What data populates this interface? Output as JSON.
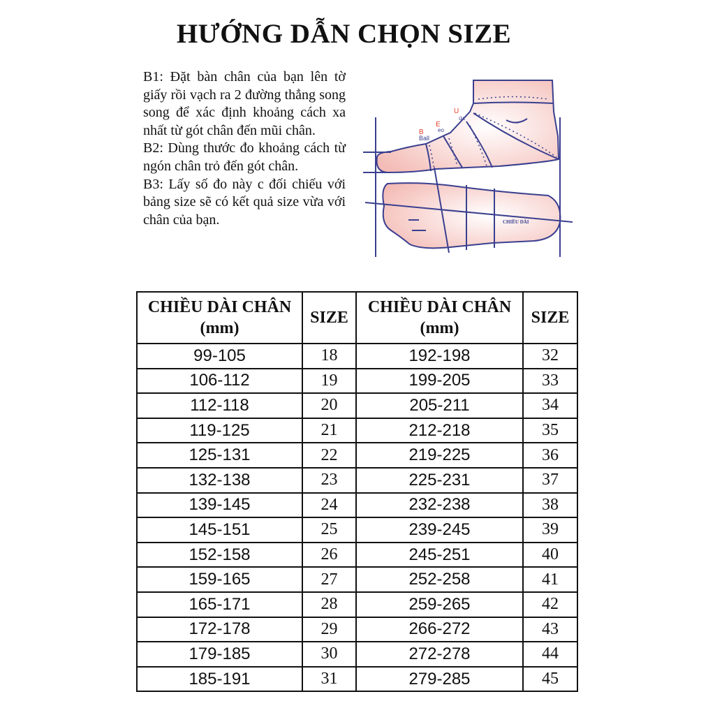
{
  "title": "HƯỚNG DẪN CHỌN SIZE",
  "instructions": [
    "B1: Đặt bàn chân của bạn lên tờ giấy rồi vạch ra 2 đường thẳng song song để xác định khoảng cách xa nhất từ gót chân đến mũi chân.",
    "B2: Dùng thước đo khoảng cách từ ngón chân trỏ đến gót chân.",
    "B3: Lấy số đo này c đối chiếu với bảng size sẽ có kết quả size vừa với chân của bạn."
  ],
  "diagram": {
    "labels": {
      "u": "U",
      "u_sub": "ức",
      "e": "E",
      "e_sub": "eo",
      "b": "B",
      "b_sub": "Ball",
      "length": "CHIỀU DÀI"
    },
    "colors": {
      "line": "#3a3f8f",
      "fill": "#f6c9c4",
      "accent": "#e0402a"
    }
  },
  "table": {
    "headers": [
      "CHIỀU DÀI CHÂN (mm)",
      "SIZE",
      "CHIỀU DÀI CHÂN (mm)",
      "SIZE"
    ],
    "rows": [
      [
        "99-105",
        "18",
        "192-198",
        "32"
      ],
      [
        "106-112",
        "19",
        "199-205",
        "33"
      ],
      [
        "112-118",
        "20",
        "205-211",
        "34"
      ],
      [
        "119-125",
        "21",
        "212-218",
        "35"
      ],
      [
        "125-131",
        "22",
        "219-225",
        "36"
      ],
      [
        "132-138",
        "23",
        "225-231",
        "37"
      ],
      [
        "139-145",
        "24",
        "232-238",
        "38"
      ],
      [
        "145-151",
        "25",
        "239-245",
        "39"
      ],
      [
        "152-158",
        "26",
        "245-251",
        "40"
      ],
      [
        "159-165",
        "27",
        "252-258",
        "41"
      ],
      [
        "165-171",
        "28",
        "259-265",
        "42"
      ],
      [
        "172-178",
        "29",
        "266-272",
        "43"
      ],
      [
        "179-185",
        "30",
        "272-278",
        "44"
      ],
      [
        "185-191",
        "31",
        "279-285",
        "45"
      ]
    ]
  }
}
